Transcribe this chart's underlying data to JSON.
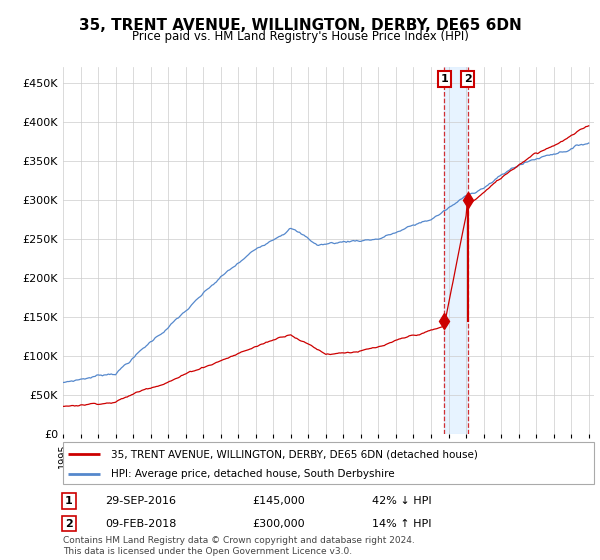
{
  "title": "35, TRENT AVENUE, WILLINGTON, DERBY, DE65 6DN",
  "subtitle": "Price paid vs. HM Land Registry's House Price Index (HPI)",
  "ytick_values": [
    0,
    50000,
    100000,
    150000,
    200000,
    250000,
    300000,
    350000,
    400000,
    450000
  ],
  "ylim": [
    0,
    470000
  ],
  "hpi_color": "#5588CC",
  "price_color": "#CC0000",
  "grid_color": "#CCCCCC",
  "shade_color": "#DDEEFF",
  "legend_label_1": "35, TRENT AVENUE, WILLINGTON, DERBY, DE65 6DN (detached house)",
  "legend_label_2": "HPI: Average price, detached house, South Derbyshire",
  "transaction_1_date": "29-SEP-2016",
  "transaction_1_price": "£145,000",
  "transaction_1_hpi": "42% ↓ HPI",
  "transaction_1_year": 2016.75,
  "transaction_1_value": 145000,
  "transaction_2_date": "09-FEB-2018",
  "transaction_2_price": "£300,000",
  "transaction_2_hpi": "14% ↑ HPI",
  "transaction_2_year": 2018.12,
  "transaction_2_value": 300000,
  "footer": "Contains HM Land Registry data © Crown copyright and database right 2024.\nThis data is licensed under the Open Government Licence v3.0.",
  "xstart": 1995,
  "xend": 2025
}
